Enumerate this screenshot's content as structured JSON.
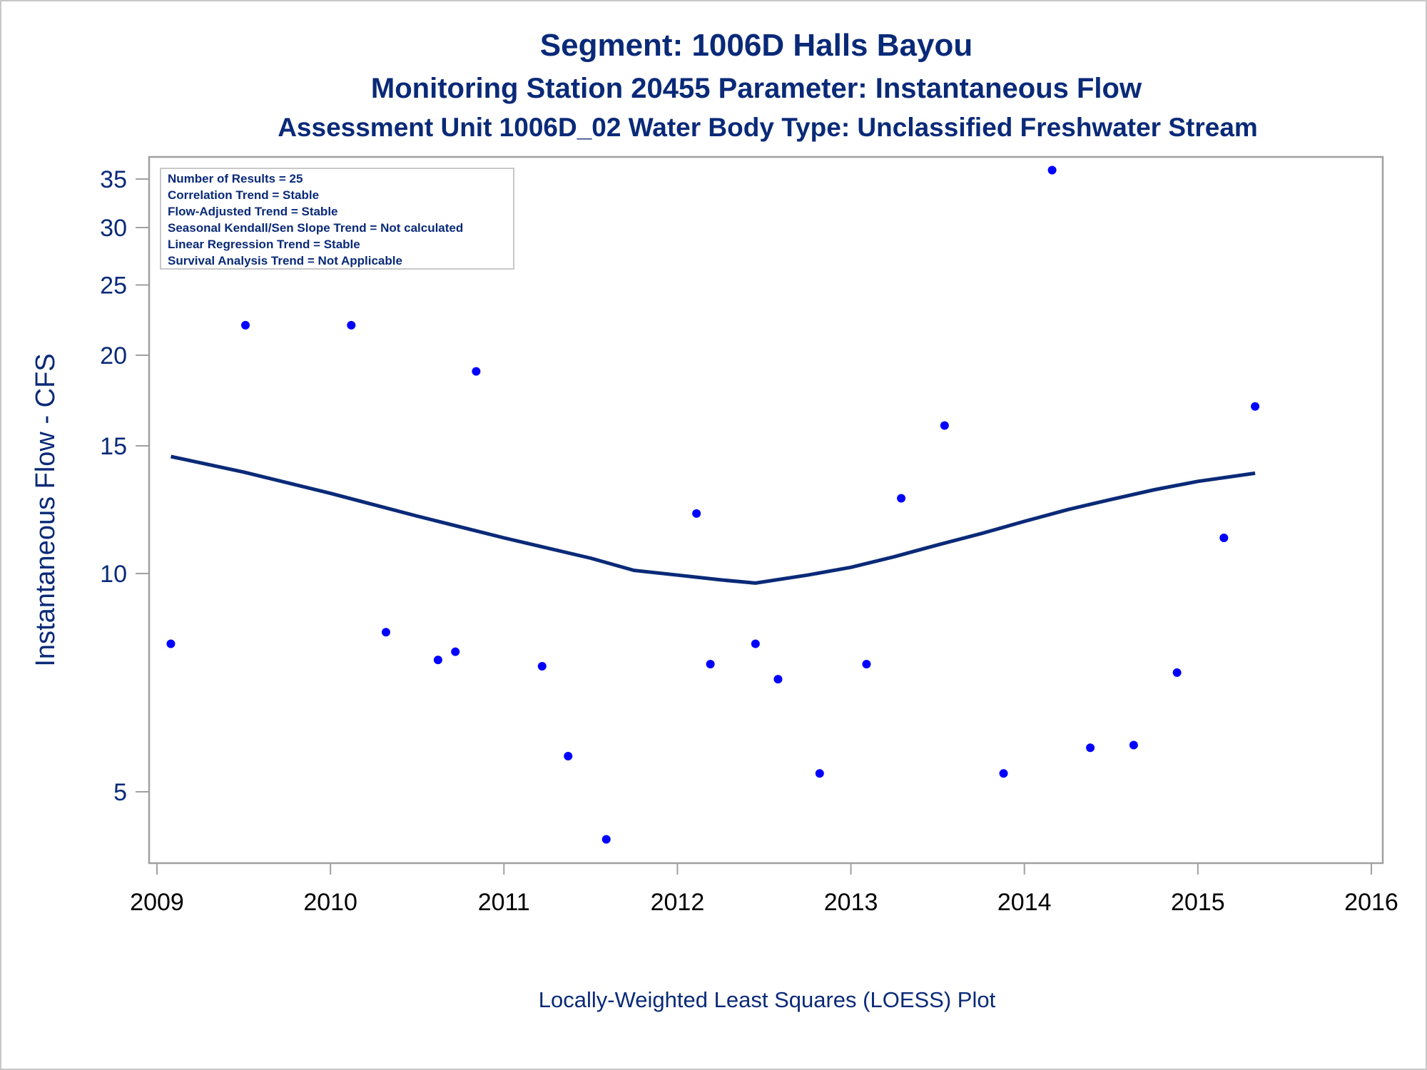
{
  "header": {
    "title": "Segment: 1006D  Halls Bayou",
    "subtitle": "Monitoring Station 20455 Parameter: Instantaneous Flow",
    "subtitle2": "Assessment Unit 1006D_02   Water Body Type: Unclassified Freshwater Stream"
  },
  "footnote": "Locally-Weighted Least Squares (LOESS) Plot",
  "stats_box": {
    "lines": [
      "Number of Results = 25",
      "Correlation Trend = Stable",
      "Flow-Adjusted Trend = Stable",
      "Seasonal Kendall/Sen Slope Trend = Not calculated",
      "Linear Regression Trend = Stable",
      "Survival Analysis Trend = Not Applicable"
    ]
  },
  "colors": {
    "title": "#0a2a78",
    "points": "#0000ff",
    "loess_line": "#0a2a78",
    "axis_text": "#0a2a78",
    "frame": "#a0a0a0"
  },
  "chart_data": {
    "type": "scatter",
    "title": "Segment: 1006D  Halls Bayou",
    "xlabel": "",
    "ylabel": "Instantaneous Flow - CFS",
    "y_scale": "log",
    "xlim": [
      2009,
      2016
    ],
    "ylim": [
      4,
      37
    ],
    "x_ticks": [
      2009,
      2010,
      2011,
      2012,
      2013,
      2014,
      2015,
      2016
    ],
    "y_ticks": [
      5,
      10,
      15,
      20,
      25,
      30,
      35
    ],
    "grid": false,
    "series": [
      {
        "kind": "points",
        "x": [
          2009.08,
          2009.51,
          2010.12,
          2010.32,
          2010.62,
          2010.72,
          2010.84,
          2011.22,
          2011.37,
          2011.59,
          2012.11,
          2012.19,
          2012.45,
          2012.58,
          2012.82,
          2013.09,
          2013.29,
          2013.54,
          2013.88,
          2014.16,
          2014.38,
          2014.63,
          2014.88,
          2015.15,
          2015.33
        ],
        "y": [
          8.0,
          22.0,
          22.0,
          8.3,
          7.6,
          7.8,
          19.0,
          7.45,
          5.6,
          4.3,
          12.1,
          7.5,
          8.0,
          7.15,
          5.3,
          7.5,
          12.7,
          16.0,
          5.3,
          36.0,
          5.75,
          5.8,
          7.3,
          11.2,
          17.0
        ]
      },
      {
        "kind": "loess",
        "x": [
          2009.08,
          2009.5,
          2010.0,
          2010.5,
          2011.0,
          2011.5,
          2011.75,
          2012.0,
          2012.25,
          2012.45,
          2012.75,
          2013.0,
          2013.25,
          2013.5,
          2013.75,
          2014.0,
          2014.25,
          2014.5,
          2014.75,
          2015.0,
          2015.33
        ],
        "y": [
          14.5,
          13.8,
          12.9,
          12.0,
          11.2,
          10.5,
          10.1,
          9.95,
          9.8,
          9.7,
          9.95,
          10.2,
          10.55,
          10.95,
          11.35,
          11.8,
          12.25,
          12.65,
          13.05,
          13.4,
          13.75
        ]
      }
    ]
  }
}
